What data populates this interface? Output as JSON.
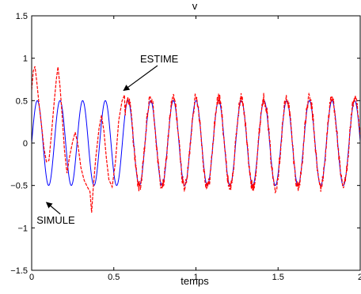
{
  "chart_data": {
    "type": "line",
    "title": "v",
    "xlabel": "temps",
    "ylabel": "",
    "xlim": [
      0,
      2
    ],
    "ylim": [
      -1.5,
      1.5
    ],
    "xticks": [
      0,
      0.5,
      1,
      1.5,
      2
    ],
    "xtick_labels": [
      "0",
      "0.5",
      "1",
      "1.5",
      "2"
    ],
    "yticks": [
      -1.5,
      -1,
      -0.5,
      0,
      0.5,
      1,
      1.5
    ],
    "ytick_labels": [
      "−1.5",
      "−1",
      "−0.5",
      "0",
      "0.5",
      "1",
      "1.5"
    ],
    "grid": false,
    "series": [
      {
        "name": "SIMULE",
        "color": "#0000ff",
        "style": "solid",
        "amplitude": 0.5,
        "period": 0.138,
        "phase": 0.0
      },
      {
        "name": "ESTIME",
        "color": "#ff0000",
        "style": "dashed-noisy",
        "points": [
          [
            0.0,
            0.6
          ],
          [
            0.01,
            0.85
          ],
          [
            0.02,
            0.9
          ],
          [
            0.03,
            0.75
          ],
          [
            0.045,
            0.45
          ],
          [
            0.06,
            0.2
          ],
          [
            0.075,
            -0.05
          ],
          [
            0.09,
            -0.25
          ],
          [
            0.105,
            -0.2
          ],
          [
            0.12,
            0.1
          ],
          [
            0.135,
            0.45
          ],
          [
            0.15,
            0.75
          ],
          [
            0.16,
            0.88
          ],
          [
            0.172,
            0.7
          ],
          [
            0.185,
            0.35
          ],
          [
            0.2,
            -0.1
          ],
          [
            0.215,
            -0.35
          ],
          [
            0.23,
            -0.15
          ],
          [
            0.25,
            0.05
          ],
          [
            0.265,
            0.15
          ],
          [
            0.28,
            0.0
          ],
          [
            0.3,
            -0.3
          ],
          [
            0.32,
            -0.45
          ],
          [
            0.34,
            -0.5
          ],
          [
            0.355,
            -0.6
          ],
          [
            0.365,
            -0.82
          ],
          [
            0.375,
            -0.55
          ],
          [
            0.39,
            -0.2
          ],
          [
            0.41,
            0.15
          ],
          [
            0.425,
            0.3
          ],
          [
            0.44,
            0.15
          ],
          [
            0.455,
            -0.2
          ],
          [
            0.47,
            -0.45
          ],
          [
            0.49,
            -0.5
          ],
          [
            0.51,
            -0.2
          ],
          [
            0.53,
            0.25
          ],
          [
            0.55,
            0.5
          ],
          [
            0.565,
            0.6
          ]
        ]
      }
    ],
    "annotations": [
      {
        "text": "ESTIME",
        "x": 0.66,
        "y": 0.95,
        "target": [
          0.56,
          0.62
        ]
      },
      {
        "text": "SIMULE",
        "x": 0.03,
        "y": -0.95,
        "target": [
          0.09,
          -0.7
        ]
      }
    ]
  }
}
